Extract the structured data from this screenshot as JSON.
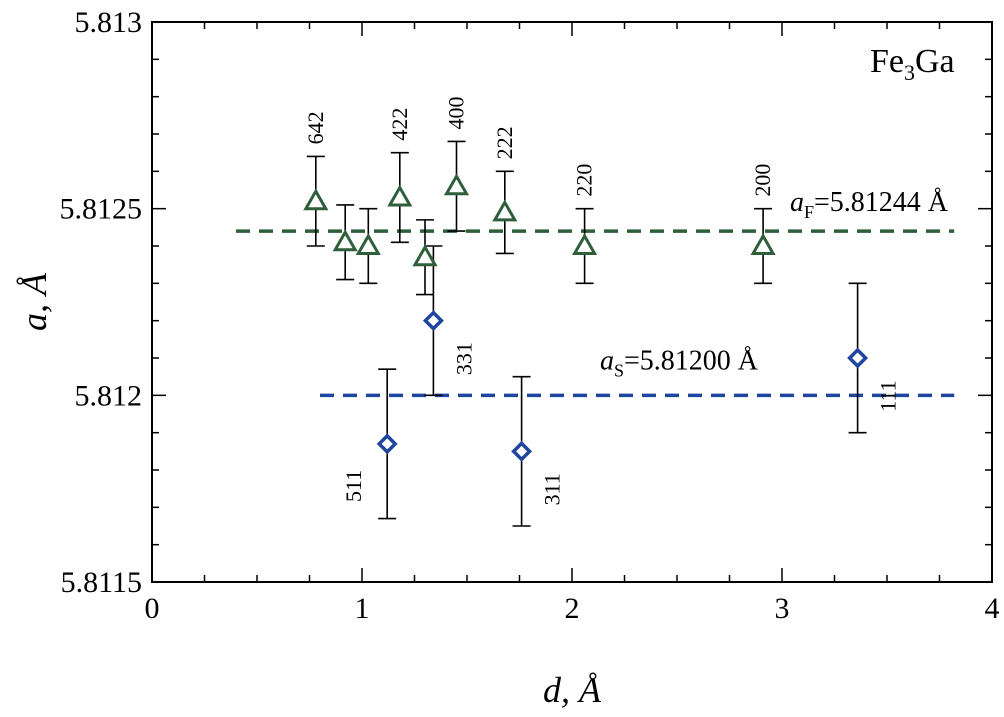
{
  "chart_data": {
    "type": "scatter",
    "xlabel": "d, Å",
    "ylabel": "a, Å",
    "xlim": [
      0,
      4
    ],
    "ylim": [
      5.8115,
      5.813
    ],
    "x_ticks": [
      "0",
      "1",
      "2",
      "3",
      "4"
    ],
    "y_ticks": [
      "5.8115",
      "5.812",
      "5.8125",
      "5.813"
    ],
    "grid": false,
    "annotation": {
      "base": "Fe",
      "sub": "3",
      "rest": "Ga"
    },
    "series": [
      {
        "marker": "triangle",
        "color": "#2f5f3a",
        "points": [
          {
            "x": 0.78,
            "y": 5.81252,
            "err": 0.00012,
            "label": "642"
          },
          {
            "x": 0.92,
            "y": 5.81241,
            "err": 0.0001,
            "label": ""
          },
          {
            "x": 1.03,
            "y": 5.8124,
            "err": 0.0001,
            "label": ""
          },
          {
            "x": 1.18,
            "y": 5.81253,
            "err": 0.00012,
            "label": "422"
          },
          {
            "x": 1.3,
            "y": 5.81237,
            "err": 0.0001,
            "label": ""
          },
          {
            "x": 1.45,
            "y": 5.81256,
            "err": 0.00012,
            "label": "400"
          },
          {
            "x": 1.68,
            "y": 5.81249,
            "err": 0.00011,
            "label": "222"
          },
          {
            "x": 2.06,
            "y": 5.8124,
            "err": 0.0001,
            "label": "220"
          },
          {
            "x": 2.91,
            "y": 5.8124,
            "err": 0.0001,
            "label": "200"
          }
        ]
      },
      {
        "marker": "diamond",
        "color": "#1f45a0",
        "points": [
          {
            "x": 1.12,
            "y": 5.81187,
            "err": 0.0002,
            "label": "511",
            "label_side": "left"
          },
          {
            "x": 1.34,
            "y": 5.8122,
            "err": 0.0002,
            "label": "331",
            "label_side": "right"
          },
          {
            "x": 1.76,
            "y": 5.81185,
            "err": 0.0002,
            "label": "311",
            "label_side": "right"
          },
          {
            "x": 3.36,
            "y": 5.8121,
            "err": 0.0002,
            "label": "111",
            "label_side": "right"
          }
        ]
      }
    ],
    "ref_lines": [
      {
        "y": 5.81244,
        "x0": 0.4,
        "x1": 3.82,
        "color": "#2f5f3a",
        "sym": "a",
        "sub": "F",
        "value": "=5.81244 Å"
      },
      {
        "y": 5.812,
        "x0": 0.8,
        "x1": 3.82,
        "color": "#1f45a0",
        "sym": "a",
        "sub": "S",
        "value": "=5.81200 Å"
      }
    ]
  }
}
